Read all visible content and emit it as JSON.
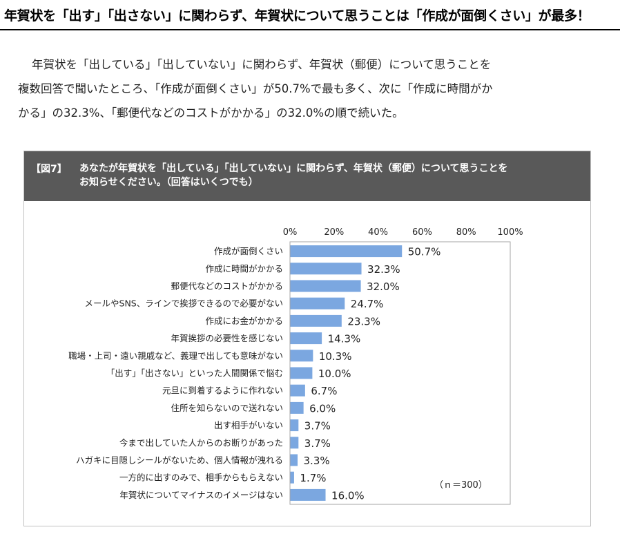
{
  "headline": "年賀状を「出す」「出さない」に関わらず、年賀状について思うことは「作成が面倒くさい」が最多！",
  "intro": {
    "line1": "年賀状を「出している」「出していない」に関わらず、年賀状（郵便）について思うことを",
    "line2": "複数回答で聞いたところ、「作成が面倒くさい」が50.7%で最も多く、次に「作成に時間がか",
    "line3": "かる」の32.3%、「郵便代などのコストがかかる」の32.0%の順で続いた。"
  },
  "figure": {
    "label": "【図7】",
    "title_line1": "あなたが年賀状を「出している」「出していない」に関わらず、年賀状（郵便）について思うことを",
    "title_line2": "お知らせください。（回答はいくつでも）",
    "note": "（ｎ＝300）"
  },
  "colors": {
    "bar": "#7ba7e0",
    "header_bg": "#595959"
  },
  "chart_data": {
    "type": "bar",
    "orientation": "horizontal",
    "xlim": [
      0,
      100
    ],
    "ticks": [
      "0%",
      "20%",
      "40%",
      "60%",
      "80%",
      "100%"
    ],
    "tick_values": [
      0,
      20,
      40,
      60,
      80,
      100
    ],
    "grid": false,
    "categories": [
      "作成が面倒くさい",
      "作成に時間がかかる",
      "郵便代などのコストがかかる",
      "メールやSNS、ラインで挨拶できるので必要がない",
      "作成にお金がかかる",
      "年賀挨拶の必要性を感じない",
      "職場・上司・遠い親戚など、義理で出しても意味がない",
      "「出す」「出さない」といった人間関係で悩む",
      "元旦に到着するように作れない",
      "住所を知らないので送れない",
      "出す相手がいない",
      "今まで出していた人からのお断りがあった",
      "ハガキに目隠しシールがないため、個人情報が洩れる",
      "一方的に出すのみで、相手からもらえない",
      "年賀状についてマイナスのイメージはない"
    ],
    "values": [
      50.7,
      32.3,
      32.0,
      24.7,
      23.3,
      14.3,
      10.3,
      10.0,
      6.7,
      6.0,
      3.7,
      3.7,
      3.3,
      1.7,
      16.0
    ],
    "value_labels": [
      "50.7%",
      "32.3%",
      "32.0%",
      "24.7%",
      "23.3%",
      "14.3%",
      "10.3%",
      "10.0%",
      "6.7%",
      "6.0%",
      "3.7%",
      "3.7%",
      "3.3%",
      "1.7%",
      "16.0%"
    ]
  }
}
